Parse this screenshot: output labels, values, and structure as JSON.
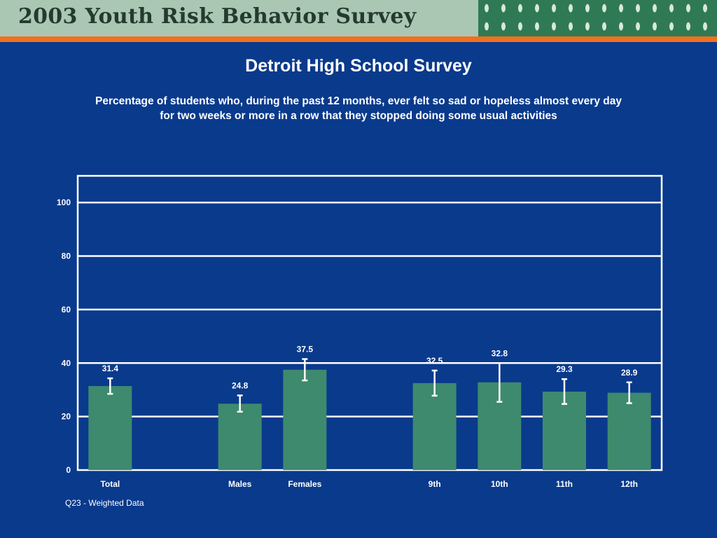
{
  "header": {
    "banner_title": "2003 Youth Risk Behavior Survey"
  },
  "colors": {
    "background": "#0a3a8c",
    "bar": "#3e8a6e",
    "banner": "#a9c7b3",
    "accent": "#f07020"
  },
  "chart_data": {
    "type": "bar",
    "title": "Detroit High School Survey",
    "subtitle_line1": "Percentage of students who, during the past 12 months, ever felt so sad or hopeless almost every day",
    "subtitle_line2": "for two weeks or more in a row that they stopped doing some usual activities",
    "categories": [
      "Total",
      "Males",
      "Females",
      "9th",
      "10th",
      "11th",
      "12th"
    ],
    "values": [
      31.4,
      24.8,
      37.5,
      32.5,
      32.8,
      29.3,
      28.9
    ],
    "error_low": [
      28.5,
      21.8,
      33.5,
      27.8,
      25.5,
      24.7,
      25.0
    ],
    "error_high": [
      34.3,
      27.9,
      41.5,
      37.2,
      40.0,
      34.0,
      32.8
    ],
    "ylim": [
      0,
      110
    ],
    "yticks": [
      0,
      20,
      40,
      60,
      80,
      100
    ],
    "grid": true,
    "xlabel": "",
    "ylabel": ""
  },
  "footnote": "Q23 - Weighted Data"
}
